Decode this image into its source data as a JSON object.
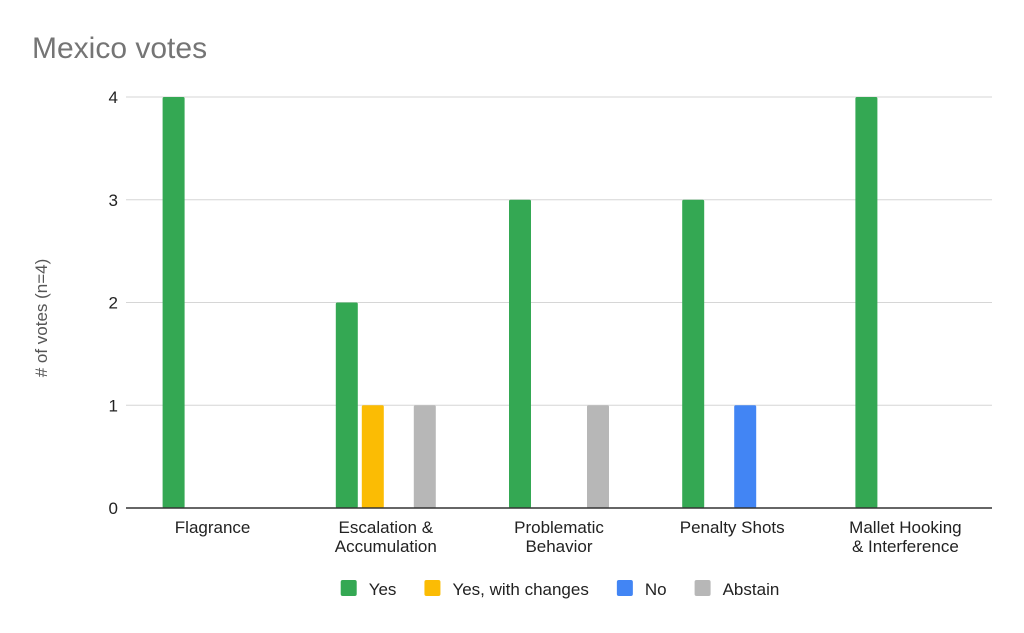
{
  "chart_data": {
    "type": "bar",
    "title": "Mexico votes",
    "xlabel": "",
    "ylabel": "# of votes (n=4)",
    "ylim": [
      0,
      4
    ],
    "yticks": [
      0,
      1,
      2,
      3,
      4
    ],
    "grid": true,
    "legend_position": "bottom",
    "categories": [
      [
        "Flagrance"
      ],
      [
        "Escalation &",
        "Accumulation"
      ],
      [
        "Problematic",
        "Behavior"
      ],
      [
        "Penalty Shots"
      ],
      [
        "Mallet Hooking",
        "& Interference"
      ]
    ],
    "series": [
      {
        "name": "Yes",
        "color": "#34a853",
        "values": [
          4,
          2,
          3,
          3,
          4
        ]
      },
      {
        "name": "Yes, with changes",
        "color": "#fbbc04",
        "values": [
          0,
          1,
          0,
          0,
          0
        ]
      },
      {
        "name": "No",
        "color": "#4285f4",
        "values": [
          0,
          0,
          0,
          1,
          0
        ]
      },
      {
        "name": "Abstain",
        "color": "#b7b7b7",
        "values": [
          0,
          1,
          1,
          0,
          0
        ]
      }
    ]
  }
}
